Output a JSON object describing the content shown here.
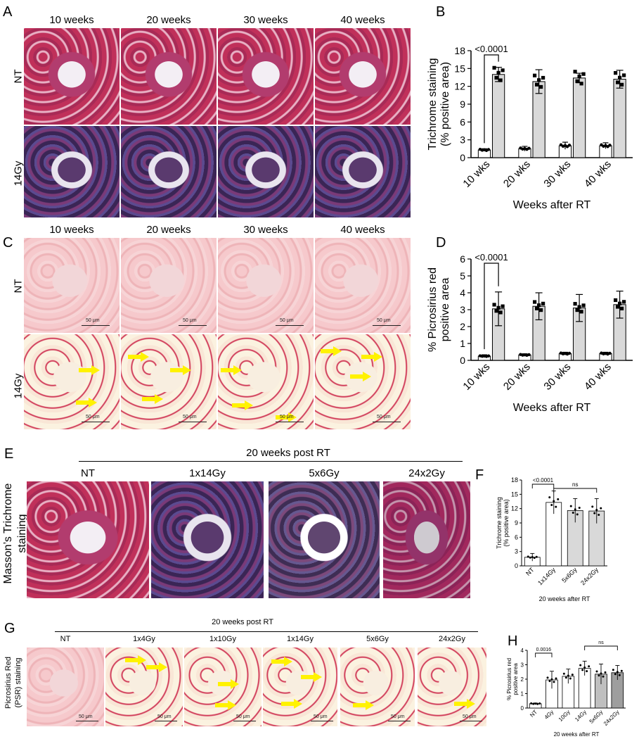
{
  "panel_letters": {
    "A": "A",
    "B": "B",
    "C": "C",
    "D": "D",
    "E": "E",
    "F": "F",
    "G": "G",
    "H": "H"
  },
  "panel_A": {
    "columns": [
      "10 weeks",
      "20 weeks",
      "30 weeks",
      "40 weeks"
    ],
    "rows": [
      "NT",
      "14Gy"
    ]
  },
  "panel_C": {
    "columns": [
      "10 weeks",
      "20 weeks",
      "30 weeks",
      "40 weeks"
    ],
    "rows": [
      "NT",
      "14Gy"
    ],
    "scale": "50 μm"
  },
  "panel_E": {
    "title": "20 weeks post RT",
    "columns": [
      "NT",
      "1x14Gy",
      "5x6Gy",
      "24x2Gy"
    ],
    "side_label_line1": "Masson’s Trichrome",
    "side_label_line2": "staining"
  },
  "panel_G": {
    "title": "20 weeks post RT",
    "columns": [
      "NT",
      "1x4Gy",
      "1x10Gy",
      "1x14Gy",
      "5x6Gy",
      "24x2Gy"
    ],
    "side_label_line1": "Picrosirius Red",
    "side_label_line2": "(PSR) staining",
    "scale": "50 μm"
  },
  "colors": {
    "nt_bar": "#ffffff",
    "rt_bar": "#d9d9d9",
    "frac_bar": "#bfbfbf",
    "frac_bar2": "#9e9e9e",
    "axis": "#000000",
    "arrow": "#fff200"
  },
  "chart_data": [
    {
      "id": "B",
      "type": "bar",
      "categories": [
        "10 wks",
        "20 wks",
        "30 wks",
        "40 wks"
      ],
      "series": [
        {
          "values": [
            1.3,
            1.5,
            2.0,
            2.0
          ]
        },
        {
          "values": [
            14.0,
            12.8,
            13.4,
            13.2
          ]
        }
      ],
      "errors": [
        [
          0.2,
          0.4,
          0.6,
          0.5
        ],
        [
          1.2,
          2.0,
          0.8,
          1.5
        ]
      ],
      "ylabel_line1": "Trichrome staining",
      "ylabel_line2": "(% positive area)",
      "xlabel": "Weeks after RT",
      "ylim": [
        0,
        18
      ],
      "yticks": [
        "0",
        "3",
        "6",
        "9",
        "12",
        "15",
        "18"
      ],
      "annotation": "<0.0001"
    },
    {
      "id": "D",
      "type": "bar",
      "categories": [
        "10 wks",
        "20 wks",
        "30 wks",
        "40 wks"
      ],
      "series": [
        {
          "values": [
            0.25,
            0.32,
            0.4,
            0.4
          ]
        },
        {
          "values": [
            3.05,
            3.2,
            3.1,
            3.3
          ]
        }
      ],
      "errors": [
        [
          0.08,
          0.07,
          0.08,
          0.08
        ],
        [
          1.0,
          0.8,
          0.8,
          0.8
        ]
      ],
      "ylabel_line1": "% Picrosirius red",
      "ylabel_line2": "positive area",
      "xlabel": "Weeks after RT",
      "ylim": [
        0,
        6
      ],
      "yticks": [
        "0",
        "1",
        "2",
        "3",
        "4",
        "5",
        "6"
      ],
      "annotation": "<0.0001"
    },
    {
      "id": "F",
      "type": "bar",
      "categories": [
        "NT",
        "1x14Gy",
        "5x6Gy",
        "24x2Gy"
      ],
      "values": [
        1.8,
        13.3,
        11.6,
        11.5
      ],
      "errors": [
        0.8,
        2.4,
        2.5,
        2.6
      ],
      "ylabel_line1": "Trichrome staining",
      "ylabel_line2": "(% positive area)",
      "xlabel": "20 weeks after RT",
      "ylim": [
        0,
        18
      ],
      "yticks": [
        "0",
        "3",
        "6",
        "9",
        "12",
        "15",
        "18"
      ],
      "annotation1": "<0.0001",
      "annotation2": "ns"
    },
    {
      "id": "H",
      "type": "bar",
      "categories": [
        "NT",
        "4Gy",
        "10Gy",
        "14Gy",
        "5x6Gy",
        "24x2Gy"
      ],
      "values": [
        0.3,
        1.95,
        2.2,
        2.75,
        2.35,
        2.45
      ],
      "errors": [
        0.05,
        0.6,
        0.5,
        0.5,
        0.7,
        0.5
      ],
      "ylabel_line1": "% Picrosirius red",
      "ylabel_line2": "positive area",
      "xlabel": "20 weeks after RT",
      "ylim": [
        0,
        4
      ],
      "yticks": [
        "0",
        "1",
        "2",
        "3",
        "4"
      ],
      "annotation1": "0.0016",
      "annotation2": "ns"
    }
  ]
}
